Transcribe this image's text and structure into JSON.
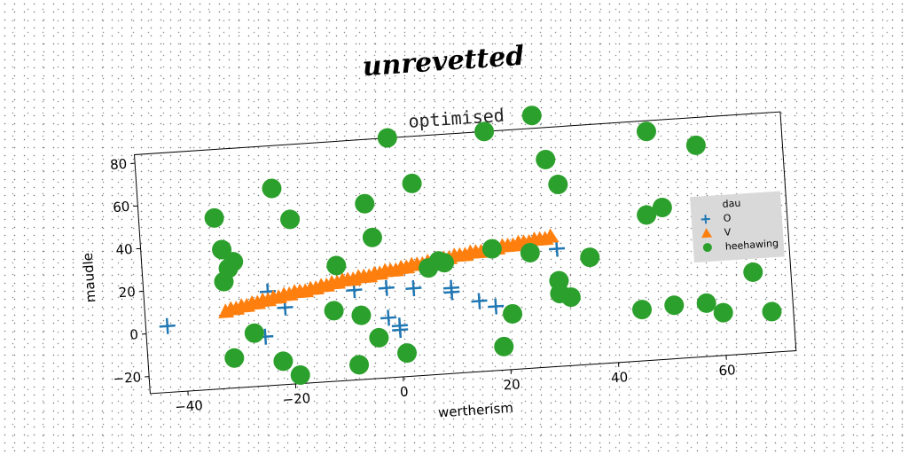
{
  "supertitle": "unrevetted",
  "chart_data": {
    "type": "scatter",
    "title": "optimised",
    "xlabel": "wertherism",
    "ylabel": "maudle",
    "xlim": [
      -47,
      73
    ],
    "ylim": [
      -28,
      84
    ],
    "xticks": [
      -40,
      -20,
      0,
      20,
      40,
      60
    ],
    "yticks": [
      -20,
      0,
      20,
      40,
      60,
      80
    ],
    "grid": false,
    "legend_title": "dau",
    "legend_position": "right",
    "series": [
      {
        "name": "O",
        "marker": "plus",
        "color": "#1f77b4",
        "points": [
          [
            -43,
            3
          ],
          [
            -24,
            16
          ],
          [
            -25,
            -5
          ],
          [
            -21,
            8
          ],
          [
            -8,
            14
          ],
          [
            -2,
            14
          ],
          [
            -2,
            0
          ],
          [
            0,
            -4
          ],
          [
            0,
            -6
          ],
          [
            3,
            13
          ],
          [
            10,
            12
          ],
          [
            10,
            10
          ],
          [
            15,
            5
          ],
          [
            18,
            2
          ],
          [
            30,
            27
          ]
        ]
      },
      {
        "name": "V",
        "marker": "triangle",
        "color": "#ff7f0e",
        "points": [
          [
            -32,
            8
          ],
          [
            -31,
            9
          ],
          [
            -30,
            9
          ],
          [
            -29,
            10
          ],
          [
            -28,
            10
          ],
          [
            -27,
            11
          ],
          [
            -26,
            11
          ],
          [
            -25,
            12
          ],
          [
            -24,
            12
          ],
          [
            -23,
            13
          ],
          [
            -22,
            13
          ],
          [
            -21,
            14
          ],
          [
            -20,
            14
          ],
          [
            -19,
            15
          ],
          [
            -18,
            15
          ],
          [
            -17,
            15
          ],
          [
            -16,
            16
          ],
          [
            -15,
            16
          ],
          [
            -14,
            17
          ],
          [
            -13,
            17
          ],
          [
            -12,
            18
          ],
          [
            -11,
            18
          ],
          [
            -10,
            19
          ],
          [
            -9,
            19
          ],
          [
            -8,
            19
          ],
          [
            -7,
            20
          ],
          [
            -6,
            20
          ],
          [
            -5,
            20
          ],
          [
            -4,
            21
          ],
          [
            -3,
            21
          ],
          [
            -2,
            22
          ],
          [
            -1,
            22
          ],
          [
            0,
            22
          ],
          [
            1,
            23
          ],
          [
            2,
            23
          ],
          [
            3,
            24
          ],
          [
            4,
            24
          ],
          [
            5,
            24
          ],
          [
            6,
            25
          ],
          [
            7,
            25
          ],
          [
            8,
            26
          ],
          [
            9,
            26
          ],
          [
            10,
            26
          ],
          [
            11,
            27
          ],
          [
            12,
            27
          ],
          [
            13,
            27
          ],
          [
            14,
            28
          ],
          [
            15,
            28
          ],
          [
            16,
            28
          ],
          [
            17,
            29
          ],
          [
            18,
            29
          ],
          [
            19,
            29
          ],
          [
            20,
            30
          ],
          [
            21,
            30
          ],
          [
            22,
            30
          ],
          [
            23,
            31
          ],
          [
            24,
            31
          ],
          [
            25,
            31
          ],
          [
            26,
            32
          ],
          [
            27,
            32
          ],
          [
            28,
            32
          ],
          [
            29,
            33
          ]
        ]
      },
      {
        "name": "heehawing",
        "marker": "circle",
        "color": "#2ca02c",
        "points": [
          [
            -33,
            52
          ],
          [
            -32,
            37
          ],
          [
            -30,
            31
          ],
          [
            -31,
            28
          ],
          [
            -32,
            22
          ],
          [
            -27,
            -3
          ],
          [
            -31,
            -14
          ],
          [
            -22,
            -17
          ],
          [
            -19,
            -24
          ],
          [
            -22,
            64
          ],
          [
            -19,
            49
          ],
          [
            -11,
            26
          ],
          [
            -12,
            5
          ],
          [
            -8,
            -21
          ],
          [
            -7,
            2
          ],
          [
            -5,
            54
          ],
          [
            -4,
            38
          ],
          [
            -4,
            -9
          ],
          [
            0,
            84
          ],
          [
            1,
            -17
          ],
          [
            4,
            62
          ],
          [
            6,
            22
          ],
          [
            8,
            25
          ],
          [
            9,
            24
          ],
          [
            18,
            84
          ],
          [
            18,
            29
          ],
          [
            19,
            -17
          ],
          [
            21,
            -2
          ],
          [
            25,
            26
          ],
          [
            27,
            90
          ],
          [
            29,
            69
          ],
          [
            31,
            57
          ],
          [
            30,
            12
          ],
          [
            30,
            6
          ],
          [
            32,
            4
          ],
          [
            36,
            22
          ],
          [
            45,
            -4
          ],
          [
            47,
            40
          ],
          [
            48,
            79
          ],
          [
            50,
            43
          ],
          [
            51,
            -3
          ],
          [
            57,
            71
          ],
          [
            57,
            -3
          ],
          [
            60,
            -8
          ],
          [
            66,
            10
          ],
          [
            69,
            -9
          ]
        ]
      }
    ]
  }
}
